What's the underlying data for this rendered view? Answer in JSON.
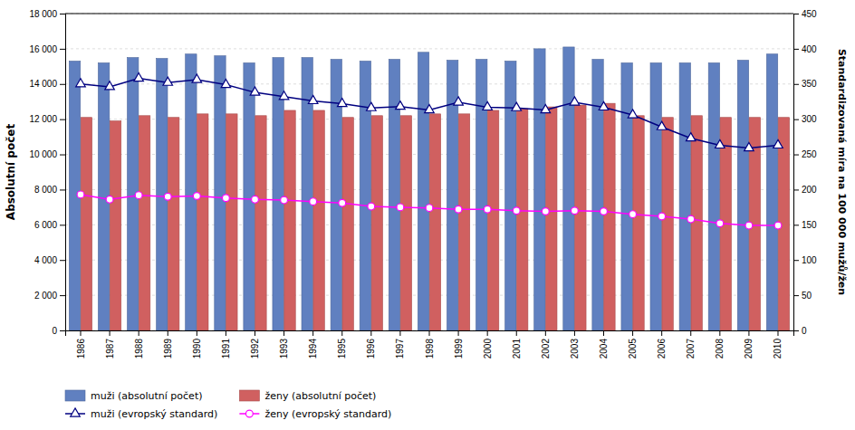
{
  "chart_data": {
    "type": "bar",
    "categories": [
      "1986",
      "1987",
      "1988",
      "1989",
      "1990",
      "1991",
      "1992",
      "1993",
      "1994",
      "1995",
      "1996",
      "1997",
      "1998",
      "1999",
      "2000",
      "2001",
      "2002",
      "2003",
      "2004",
      "2005",
      "2006",
      "2007",
      "2008",
      "2009",
      "2010"
    ],
    "series": [
      {
        "name": "muži (absolutní počet)",
        "type": "bar",
        "color": "#6080C0",
        "values": [
          15300,
          15200,
          15500,
          15450,
          15700,
          15600,
          15200,
          15500,
          15500,
          15400,
          15300,
          15400,
          15800,
          15350,
          15400,
          15300,
          16000,
          16100,
          15400,
          15200,
          15200,
          15200,
          15200,
          15350,
          15700
        ]
      },
      {
        "name": "ženy (absolutní počet)",
        "type": "bar",
        "color": "#D06060",
        "values": [
          12100,
          11900,
          12200,
          12100,
          12300,
          12300,
          12200,
          12500,
          12500,
          12100,
          12200,
          12200,
          12300,
          12300,
          12500,
          12600,
          12700,
          12800,
          12900,
          12200,
          12100,
          12200,
          12100,
          12100,
          12100
        ]
      },
      {
        "name": "muži (evropský standard)",
        "type": "line",
        "axis": "y2",
        "color": "#000080",
        "marker": "triangle",
        "values": [
          350,
          346,
          358,
          352,
          356,
          349,
          338,
          332,
          326,
          322,
          316,
          318,
          313,
          324,
          317,
          316,
          313,
          324,
          317,
          306,
          289,
          273,
          263,
          259,
          263
        ]
      },
      {
        "name": "ženy (evropský standard)",
        "type": "line",
        "axis": "y2",
        "color": "#FF00FF",
        "marker": "circle",
        "values": [
          193,
          186,
          192,
          190,
          191,
          188,
          186,
          185,
          183,
          181,
          176,
          175,
          174,
          172,
          172,
          170,
          169,
          170,
          169,
          165,
          162,
          158,
          152,
          149,
          149
        ]
      }
    ],
    "ylabel": "Absolutní počet",
    "y2label": "Standardizovaná míra na 100 000 mužů/žen",
    "ylim": [
      0,
      18000
    ],
    "yticks": [
      0,
      {
        "value": 2000,
        "label": "2 000"
      },
      {
        "value": 4000,
        "label": "4 000"
      },
      {
        "value": 6000,
        "label": "6 000"
      },
      {
        "value": 8000,
        "label": "8 000"
      },
      {
        "value": 10000,
        "label": "10 000"
      },
      {
        "value": 12000,
        "label": "12 000"
      },
      {
        "value": 14000,
        "label": "14 000"
      },
      {
        "value": 16000,
        "label": "16 000"
      },
      {
        "value": 18000,
        "label": "18 000"
      }
    ],
    "y2lim": [
      0,
      450
    ],
    "y2ticks": [
      0,
      50,
      100,
      150,
      200,
      250,
      300,
      350,
      400,
      450
    ],
    "grid": true,
    "legend": "lower left"
  }
}
